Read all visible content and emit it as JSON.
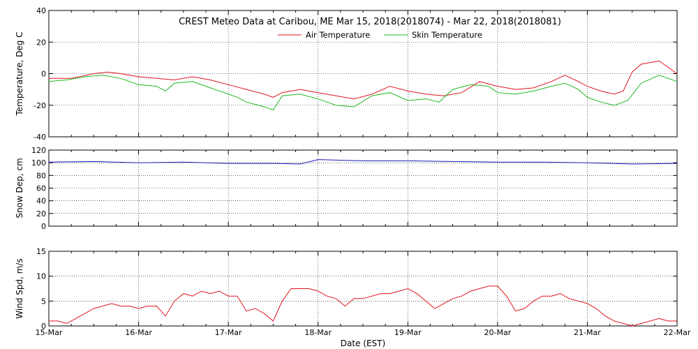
{
  "chart_data": {
    "type": "line",
    "title": "CREST Meteo Data at Caribou, ME   Mar 15, 2018(2018074) - Mar 22, 2018(2018081)",
    "xlabel": "Date (EST)",
    "x_ticks": [
      "15-Mar",
      "16-Mar",
      "17-Mar",
      "18-Mar",
      "19-Mar",
      "20-Mar",
      "21-Mar",
      "22-Mar"
    ],
    "x_range_days": [
      0,
      7
    ],
    "grid": true,
    "panels": [
      {
        "ylabel": "Temperature, Deg C",
        "ylim": [
          -40,
          40
        ],
        "yticks": [
          "40",
          "20",
          "0",
          "-20",
          "-40"
        ],
        "yticks_values": [
          40,
          20,
          0,
          -20,
          -40
        ],
        "legend_placement": "top-center",
        "series": [
          {
            "name": "Air Temperature",
            "color": "#e0141e",
            "days": [
              0,
              0.25,
              0.5,
              0.65,
              0.8,
              1.0,
              1.2,
              1.4,
              1.6,
              1.8,
              2.0,
              2.2,
              2.4,
              2.5,
              2.6,
              2.8,
              3.0,
              3.2,
              3.4,
              3.6,
              3.8,
              4.0,
              4.2,
              4.4,
              4.6,
              4.8,
              5.0,
              5.2,
              5.4,
              5.6,
              5.75,
              5.9,
              6.0,
              6.15,
              6.3,
              6.4,
              6.5,
              6.6,
              6.8,
              7.0
            ],
            "values": [
              -3,
              -3,
              0,
              1,
              0,
              -2,
              -3,
              -4,
              -2,
              -4,
              -7,
              -10,
              -13,
              -15,
              -12,
              -10,
              -12,
              -14,
              -16,
              -13,
              -8,
              -11,
              -13,
              -14,
              -12,
              -5,
              -8,
              -10,
              -9,
              -5,
              -1,
              -5,
              -8,
              -11,
              -13,
              -11,
              1,
              6,
              8,
              0
            ]
          },
          {
            "name": "Skin Temperature",
            "color": "#1fb81f",
            "days": [
              0,
              0.2,
              0.4,
              0.6,
              0.8,
              1.0,
              1.2,
              1.3,
              1.4,
              1.6,
              1.8,
              2.0,
              2.1,
              2.2,
              2.4,
              2.5,
              2.6,
              2.8,
              3.0,
              3.2,
              3.4,
              3.6,
              3.8,
              4.0,
              4.2,
              4.35,
              4.5,
              4.7,
              4.9,
              5.0,
              5.2,
              5.4,
              5.6,
              5.75,
              5.9,
              6.0,
              6.15,
              6.3,
              6.45,
              6.6,
              6.8,
              7.0
            ],
            "values": [
              -5,
              -4,
              -2,
              -1,
              -3,
              -7,
              -8,
              -11,
              -6,
              -5,
              -9,
              -13,
              -15,
              -18,
              -21,
              -23,
              -14,
              -13,
              -16,
              -20,
              -21,
              -14,
              -12,
              -17,
              -16,
              -18,
              -10,
              -7,
              -8,
              -12,
              -13,
              -11,
              -8,
              -6,
              -10,
              -15,
              -18,
              -20,
              -17,
              -6,
              -1,
              -5
            ]
          }
        ]
      },
      {
        "ylabel": "Snow Dep, cm",
        "ylim": [
          0,
          120
        ],
        "yticks": [
          "120",
          "100",
          "80",
          "60",
          "40",
          "20",
          "0"
        ],
        "yticks_values": [
          120,
          100,
          80,
          60,
          40,
          20,
          0
        ],
        "series": [
          {
            "name": "",
            "color": "#1a1ab8",
            "days": [
              0,
              0.5,
              1.0,
              1.5,
              2.0,
              2.5,
              2.8,
              3.0,
              3.5,
              4.0,
              4.5,
              5.0,
              5.5,
              6.0,
              6.5,
              7.0
            ],
            "values": [
              101,
              102,
              100,
              101,
              99,
              99,
              98,
              105,
              103,
              103,
              102,
              101,
              101,
              100,
              98,
              99
            ]
          }
        ]
      },
      {
        "ylabel": "Wind Spd, m/s",
        "ylim": [
          0,
          15
        ],
        "yticks": [
          "15",
          "10",
          "5",
          "0"
        ],
        "yticks_values": [
          15,
          10,
          5,
          0
        ],
        "series": [
          {
            "name": "",
            "color": "#e0141e",
            "days": [
              0,
              0.1,
              0.2,
              0.3,
              0.4,
              0.5,
              0.6,
              0.7,
              0.8,
              0.9,
              1.0,
              1.1,
              1.2,
              1.3,
              1.4,
              1.5,
              1.6,
              1.7,
              1.8,
              1.9,
              2.0,
              2.1,
              2.2,
              2.3,
              2.4,
              2.5,
              2.6,
              2.7,
              2.8,
              2.9,
              3.0,
              3.1,
              3.2,
              3.3,
              3.4,
              3.5,
              3.6,
              3.7,
              3.8,
              3.9,
              4.0,
              4.1,
              4.2,
              4.3,
              4.4,
              4.5,
              4.6,
              4.7,
              4.8,
              4.9,
              5.0,
              5.1,
              5.2,
              5.3,
              5.4,
              5.5,
              5.6,
              5.7,
              5.8,
              5.9,
              6.0,
              6.1,
              6.2,
              6.3,
              6.4,
              6.5,
              6.6,
              6.7,
              6.8,
              6.9,
              7.0
            ],
            "values": [
              1,
              1,
              0.5,
              1.5,
              2.5,
              3.5,
              4,
              4.5,
              4,
              4,
              3.5,
              4,
              4,
              2,
              5,
              6.5,
              6,
              7,
              6.5,
              7,
              6,
              6,
              3,
              3.5,
              2.5,
              1,
              5,
              7.5,
              7.5,
              7.5,
              7,
              6,
              5.5,
              4,
              5.5,
              5.5,
              6,
              6.5,
              6.5,
              7,
              7.5,
              6.5,
              5,
              3.5,
              4.5,
              5.5,
              6,
              7,
              7.5,
              8,
              8,
              6,
              3,
              3.5,
              5,
              6,
              6,
              6.5,
              5.5,
              5,
              4.5,
              3.5,
              2,
              1,
              0.5,
              0,
              0.5,
              1,
              1.5,
              1,
              1
            ]
          }
        ]
      }
    ]
  }
}
